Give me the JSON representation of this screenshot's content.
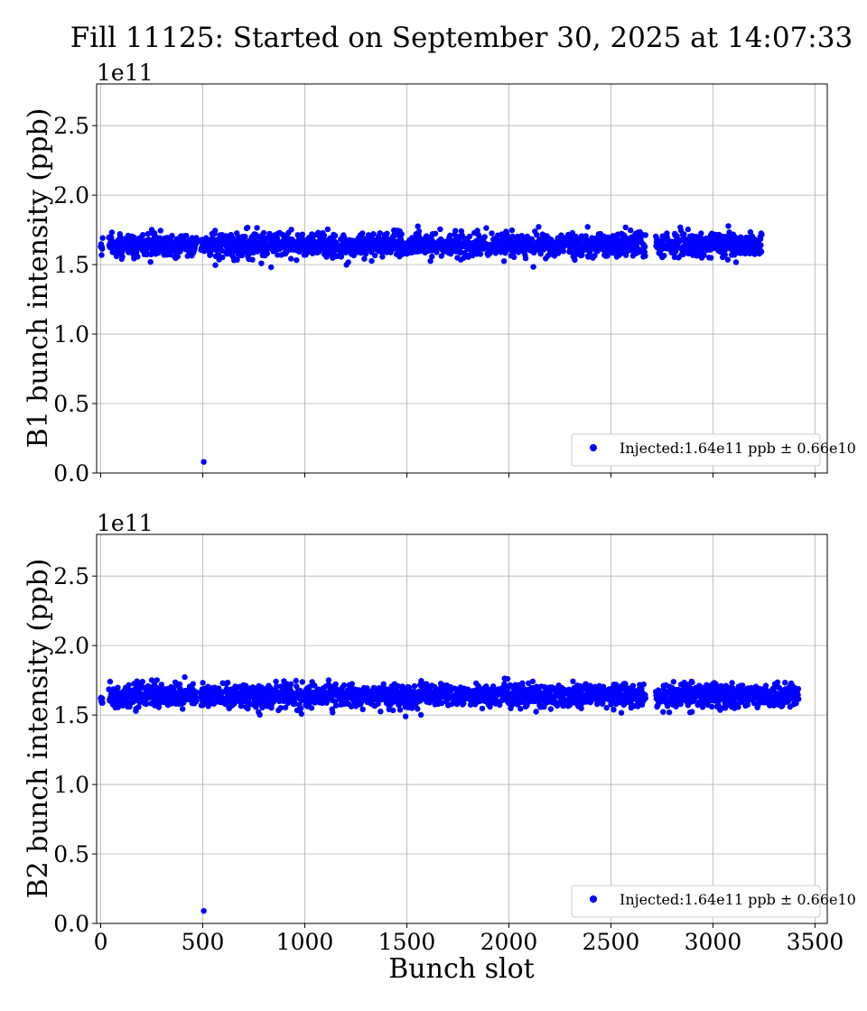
{
  "figure_title": "Fill 11125: Started on September 30, 2025 at 14:07:33",
  "colors": {
    "points": "#0000ff",
    "grid": "#b0b0b0",
    "axes": "#000000"
  },
  "chart_data": [
    {
      "type": "scatter",
      "title": "",
      "xlabel": "",
      "ylabel": "B1 bunch intensity (ppb)",
      "offset_label": "1e11",
      "xlim": [
        -20,
        3560
      ],
      "ylim": [
        0,
        2.8
      ],
      "y_scale_factor": 100000000000.0,
      "xticks": [
        0,
        500,
        1000,
        1500,
        2000,
        2500,
        3000,
        3500
      ],
      "xtick_labels": [
        "",
        "",
        "",
        "",
        "",
        "",
        "",
        ""
      ],
      "yticks": [
        0.0,
        0.5,
        1.0,
        1.5,
        2.0,
        2.5
      ],
      "ytick_labels": [
        "0.0",
        "0.5",
        "1.0",
        "1.5",
        "2.0",
        "2.5"
      ],
      "grid": true,
      "legend": {
        "placement": "lower-right",
        "entries": [
          {
            "label": "Injected:1.64e11 ppb ± 0.66e10",
            "color": "#0000ff",
            "marker": "circle"
          }
        ]
      },
      "series": [
        {
          "name": "Injected:1.64e11 ppb ± 0.66e10",
          "color": "#0000ff",
          "bunch_trains_x": [
            [
              0,
              10
            ],
            [
              40,
              470
            ],
            [
              490,
              600
            ],
            [
              610,
              1160
            ],
            [
              1170,
              1720
            ],
            [
              1730,
              2280
            ],
            [
              2290,
              2670
            ],
            [
              2720,
              3240
            ]
          ],
          "mean_y": 1.64,
          "std_y": 0.066,
          "range_y": [
            1.43,
            1.8
          ],
          "outliers": [
            {
              "x": 505,
              "y": 0.08
            }
          ]
        }
      ]
    },
    {
      "type": "scatter",
      "title": "",
      "xlabel": "Bunch slot",
      "ylabel": "B2 bunch intensity (ppb)",
      "offset_label": "1e11",
      "xlim": [
        -20,
        3560
      ],
      "ylim": [
        0,
        2.8
      ],
      "y_scale_factor": 100000000000.0,
      "xticks": [
        0,
        500,
        1000,
        1500,
        2000,
        2500,
        3000,
        3500
      ],
      "xtick_labels": [
        "0",
        "500",
        "1000",
        "1500",
        "2000",
        "2500",
        "3000",
        "3500"
      ],
      "yticks": [
        0.0,
        0.5,
        1.0,
        1.5,
        2.0,
        2.5
      ],
      "ytick_labels": [
        "0.0",
        "0.5",
        "1.0",
        "1.5",
        "2.0",
        "2.5"
      ],
      "grid": true,
      "legend": {
        "placement": "lower-right",
        "entries": [
          {
            "label": "Injected:1.64e11 ppb ± 0.66e10",
            "color": "#0000ff",
            "marker": "circle"
          }
        ]
      },
      "series": [
        {
          "name": "Injected:1.64e11 ppb ± 0.66e10",
          "color": "#0000ff",
          "bunch_trains_x": [
            [
              0,
              10
            ],
            [
              40,
              470
            ],
            [
              490,
              600
            ],
            [
              610,
              1160
            ],
            [
              1170,
              1720
            ],
            [
              1730,
              2280
            ],
            [
              2290,
              2670
            ],
            [
              2720,
              3240
            ],
            [
              3250,
              3420
            ]
          ],
          "mean_y": 1.64,
          "std_y": 0.066,
          "range_y": [
            1.42,
            1.84
          ],
          "outliers": [
            {
              "x": 505,
              "y": 0.09
            }
          ]
        }
      ]
    }
  ]
}
